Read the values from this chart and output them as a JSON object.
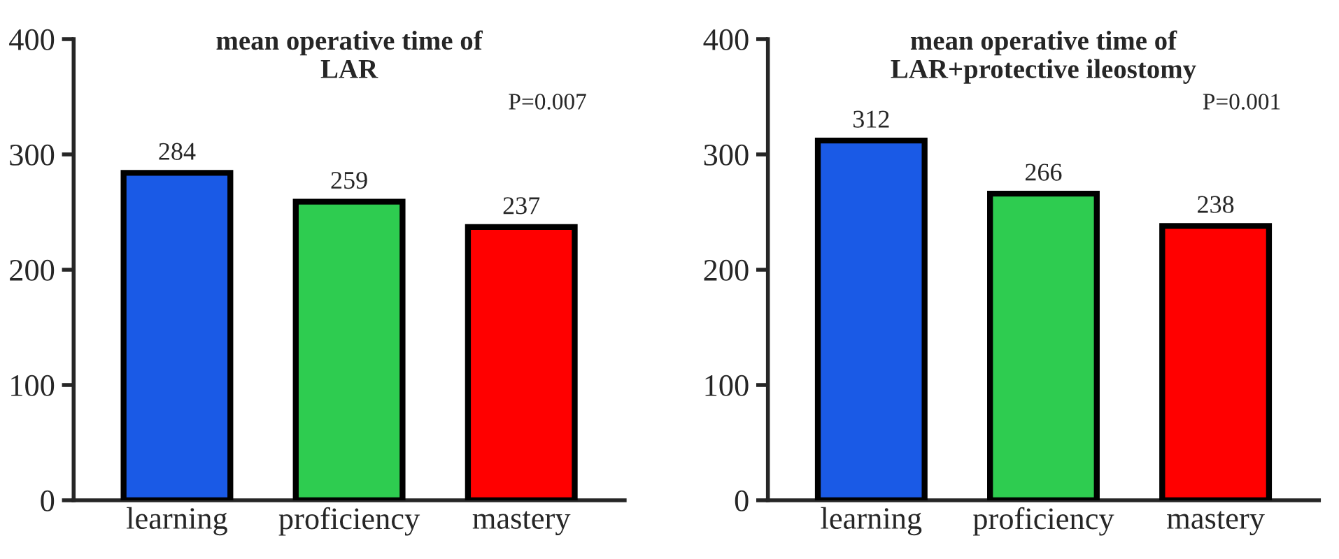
{
  "chart_data": [
    {
      "type": "bar",
      "title": "mean operative time of\nLAR",
      "categories": [
        "learning",
        "proficiency",
        "mastery"
      ],
      "values": [
        284,
        259,
        237
      ],
      "colors": [
        "#1a5ae6",
        "#2ecc50",
        "#ff0000"
      ],
      "ylim": [
        0,
        400
      ],
      "yticks": [
        0,
        100,
        200,
        300,
        400
      ],
      "data_labels": true,
      "annotations": [
        "P=0.007"
      ],
      "grid": false
    },
    {
      "type": "bar",
      "title": "mean operative time of\nLAR+protective ileostomy",
      "categories": [
        "learning",
        "proficiency",
        "mastery"
      ],
      "values": [
        312,
        266,
        238
      ],
      "colors": [
        "#1a5ae6",
        "#2ecc50",
        "#ff0000"
      ],
      "ylim": [
        0,
        400
      ],
      "yticks": [
        0,
        100,
        200,
        300,
        400
      ],
      "data_labels": true,
      "annotations": [
        "P=0.001"
      ],
      "grid": false
    }
  ]
}
